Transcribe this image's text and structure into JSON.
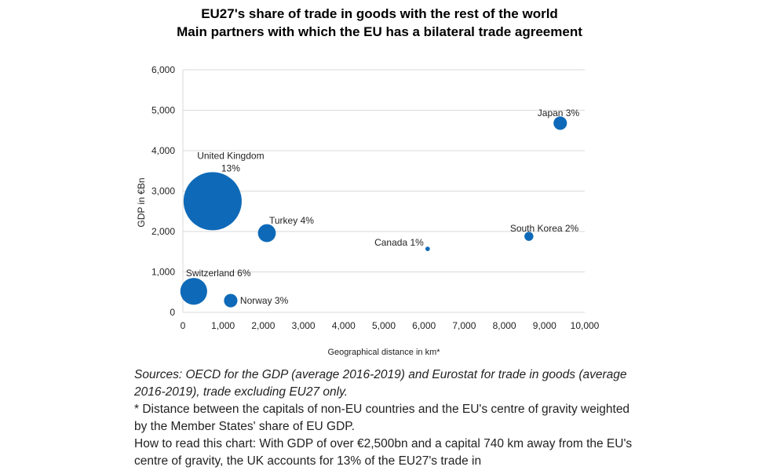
{
  "chart_data": {
    "type": "scatter",
    "subtype": "bubble",
    "title": "EU27's share of trade in goods with the rest of the world",
    "subtitle": "Main partners with which the EU has a bilateral trade agreement",
    "xlabel": "Geographical distance in km*",
    "ylabel": "GDP in €Bn",
    "xlim": [
      0,
      10000
    ],
    "ylim": [
      0,
      6000
    ],
    "xticks": [
      "0",
      "1,000",
      "2,000",
      "3,000",
      "4,000",
      "5,000",
      "6,000",
      "7,000",
      "8,000",
      "9,000",
      "10,000"
    ],
    "yticks": [
      "0",
      "1,000",
      "2,000",
      "3,000",
      "4,000",
      "5,000",
      "6,000"
    ],
    "grid": "horizontal",
    "color": "#0e6ab8",
    "points": [
      {
        "name": "United Kingdom",
        "label": "13%",
        "x": 740,
        "y": 2750,
        "share": 13
      },
      {
        "name": "Turkey",
        "label": "4%",
        "x": 2090,
        "y": 1960,
        "share": 4
      },
      {
        "name": "Switzerland",
        "label": "6%",
        "x": 270,
        "y": 520,
        "share": 6
      },
      {
        "name": "Norway",
        "label": "3%",
        "x": 1190,
        "y": 290,
        "share": 3
      },
      {
        "name": "Canada",
        "label": "1%",
        "x": 6090,
        "y": 1570,
        "share": 1
      },
      {
        "name": "South Korea",
        "label": "2%",
        "x": 8610,
        "y": 1880,
        "share": 2
      },
      {
        "name": "Japan",
        "label": "3%",
        "x": 9390,
        "y": 4680,
        "share": 3
      }
    ]
  },
  "notes": {
    "sources": "Sources: OECD for the GDP (average 2016-2019) and Eurostat for trade in goods (average 2016-2019), trade excluding EU27 only.",
    "footnote": "* Distance between the capitals of non-EU countries and the EU's centre of gravity weighted by the Member States' share of EU GDP.",
    "how_to_read": "How to read this chart: With GDP of over €2,500bn and a capital 740 km away from the EU's centre of gravity, the UK accounts for 13% of the EU27's trade in"
  }
}
